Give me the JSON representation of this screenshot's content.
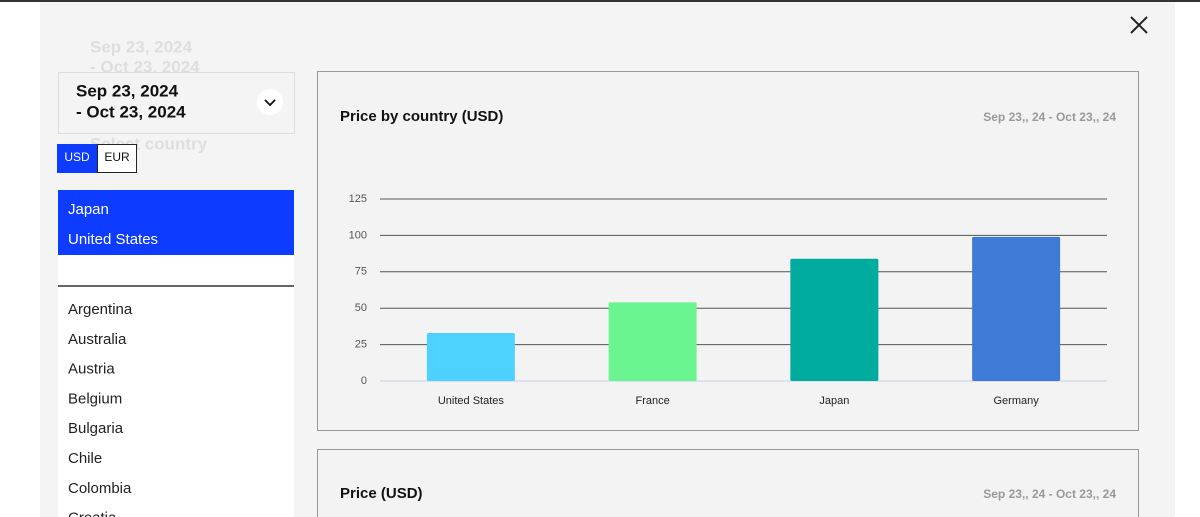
{
  "background": {
    "date_start": "Sep 23, 2024",
    "date_end": "- Oct 23, 2024",
    "country_placeholder": "Select country"
  },
  "date_picker": {
    "start": "Sep 23, 2024",
    "end": "- Oct 23, 2024"
  },
  "currency": {
    "options": [
      "USD",
      "EUR"
    ],
    "selected": "USD"
  },
  "selected_countries": [
    "Japan",
    "United States"
  ],
  "countries": [
    "Argentina",
    "Australia",
    "Austria",
    "Belgium",
    "Bulgaria",
    "Chile",
    "Colombia",
    "Croatia"
  ],
  "chart_data": {
    "type": "bar",
    "title": "Price by country (USD)",
    "subtitle": "Sep 23,, 24 - Oct 23,, 24",
    "categories": [
      "United States",
      "France",
      "Japan",
      "Germany"
    ],
    "values": [
      33,
      54,
      84,
      99
    ],
    "colors": [
      "#4dd2ff",
      "#6af590",
      "#00ac9d",
      "#3f7ad6"
    ],
    "ylim": [
      0,
      125
    ],
    "yticks": [
      0,
      25,
      50,
      75,
      100,
      125
    ],
    "grid": true
  },
  "second_panel": {
    "title": "Price (USD)",
    "date_range": "Sep 23,, 24 - Oct 23,, 24"
  }
}
